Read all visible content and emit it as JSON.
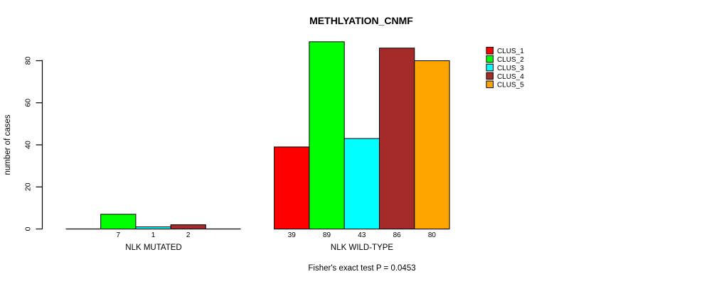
{
  "chart": {
    "title": "METHLYATION_CNMF",
    "subtitle": "Fisher's exact test P = 0.0453",
    "y_axis": {
      "label": "number of cases"
    },
    "groups": [
      {
        "label": "NLK MUTATED"
      },
      {
        "label": "NLK WILD-TYPE"
      }
    ]
  },
  "chart_data": {
    "type": "bar",
    "title": "METHLYATION_CNMF",
    "ylabel": "number of cases",
    "xlabel": "",
    "ylim": [
      0,
      89
    ],
    "yticks": [
      0,
      20,
      40,
      60,
      80
    ],
    "grid": false,
    "legend_position": "right",
    "categories": [
      "NLK MUTATED",
      "NLK WILD-TYPE"
    ],
    "series": [
      {
        "name": "CLUS_1",
        "color": "#FF0000",
        "values": [
          0,
          39
        ]
      },
      {
        "name": "CLUS_2",
        "color": "#00FF00",
        "values": [
          7,
          89
        ]
      },
      {
        "name": "CLUS_3",
        "color": "#00FFFF",
        "values": [
          1,
          43
        ]
      },
      {
        "name": "CLUS_4",
        "color": "#A52A2A",
        "values": [
          2,
          86
        ]
      },
      {
        "name": "CLUS_5",
        "color": "#FFA500",
        "values": [
          0,
          80
        ]
      }
    ],
    "bar_labels": [
      [
        "",
        "7",
        "1",
        "2",
        ""
      ],
      [
        "39",
        "89",
        "43",
        "86",
        "80"
      ]
    ],
    "annotation": "Fisher's exact test P = 0.0453",
    "colors": {
      "axis": "#000000",
      "bar_border": "#000000",
      "text": "#000000",
      "background": "#FFFFFF"
    }
  }
}
